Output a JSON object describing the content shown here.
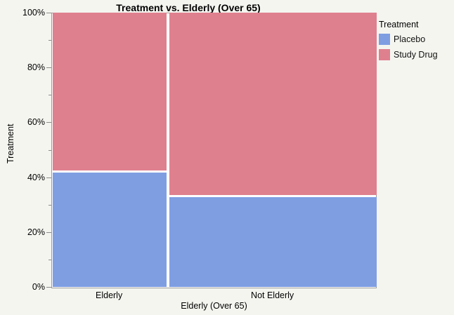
{
  "title": "Treatment vs. Elderly (Over 65)",
  "y_axis": {
    "label": "Treatment",
    "ticks": [
      {
        "value": 0,
        "label": "0%",
        "major": true
      },
      {
        "value": 10,
        "label": "",
        "major": false
      },
      {
        "value": 20,
        "label": "20%",
        "major": true
      },
      {
        "value": 30,
        "label": "",
        "major": false
      },
      {
        "value": 40,
        "label": "40%",
        "major": true
      },
      {
        "value": 50,
        "label": "",
        "major": false
      },
      {
        "value": 60,
        "label": "60%",
        "major": true
      },
      {
        "value": 70,
        "label": "",
        "major": false
      },
      {
        "value": 80,
        "label": "80%",
        "major": true
      },
      {
        "value": 90,
        "label": "",
        "major": false
      },
      {
        "value": 100,
        "label": "100%",
        "major": true
      }
    ]
  },
  "x_axis": {
    "label": "Elderly (Over 65)"
  },
  "legend": {
    "title": "Treatment"
  },
  "colors": {
    "background": "#f5f5f0",
    "plot_background": "#ffffff",
    "frame": "#9b9b9b",
    "tick": "#8c8c8c",
    "placebo_blue": "#7f9ee2",
    "study_drug_red": "#df808e"
  },
  "chart_data": {
    "type": "mosaic",
    "title": "Treatment vs. Elderly (Over 65)",
    "xlabel": "Elderly (Over 65)",
    "ylabel": "Treatment",
    "ylim": [
      0,
      100
    ],
    "y_unit": "%",
    "grid": false,
    "legend_position": "top-right",
    "x_categories": [
      "Elderly",
      "Not Elderly"
    ],
    "x_widths_pct": [
      35.5,
      64.5
    ],
    "series": [
      {
        "name": "Placebo",
        "color": "#7f9ee2",
        "values": [
          42,
          33
        ]
      },
      {
        "name": "Study Drug",
        "color": "#df808e",
        "values": [
          58,
          67
        ]
      }
    ]
  }
}
